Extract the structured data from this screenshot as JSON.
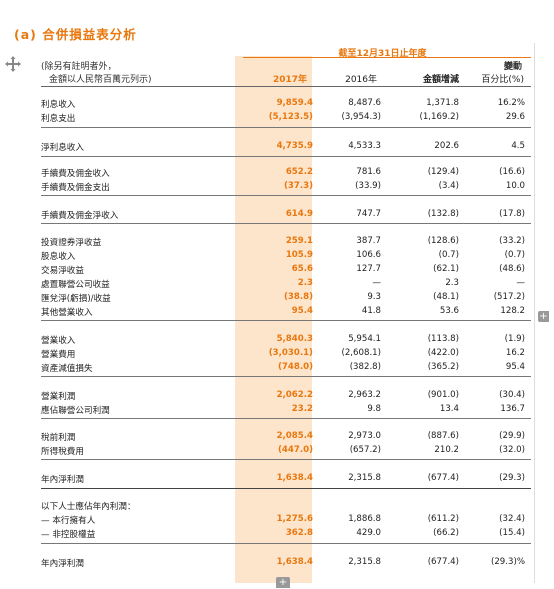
{
  "title": "(a) 合併損益表分析",
  "header": {
    "period_label": "截至12月31日止年度",
    "note_line1": "(除另有註明者外，",
    "note_line2": "金額以人民幣百萬元列示)",
    "col_2017": "2017年",
    "col_2016": "2016年",
    "col_change_amount": "金額增減",
    "col_change_pct_line1": "變動",
    "col_change_pct_line2": "百分比(%)"
  },
  "rows": [
    {
      "label": "利息收入",
      "v2017": "9,859.4",
      "v2016": "8,487.6",
      "change": "1,371.8",
      "pct": "16.2%"
    },
    {
      "label": "利息支出",
      "v2017": "(5,123.5)",
      "v2016": "(3,954.3)",
      "change": "(1,169.2)",
      "pct": "29.6"
    },
    {
      "label": "淨利息收入",
      "v2017": "4,735.9",
      "v2016": "4,533.3",
      "change": "202.6",
      "pct": "4.5"
    },
    {
      "label": "手續費及佣金收入",
      "v2017": "652.2",
      "v2016": "781.6",
      "change": "(129.4)",
      "pct": "(16.6)"
    },
    {
      "label": "手續費及佣金支出",
      "v2017": "(37.3)",
      "v2016": "(33.9)",
      "change": "(3.4)",
      "pct": "10.0"
    },
    {
      "label": "手續費及佣金淨收入",
      "v2017": "614.9",
      "v2016": "747.7",
      "change": "(132.8)",
      "pct": "(17.8)"
    },
    {
      "label": "投資證券淨收益",
      "v2017": "259.1",
      "v2016": "387.7",
      "change": "(128.6)",
      "pct": "(33.2)"
    },
    {
      "label": "股息收入",
      "v2017": "105.9",
      "v2016": "106.6",
      "change": "(0.7)",
      "pct": "(0.7)"
    },
    {
      "label": "交易淨收益",
      "v2017": "65.6",
      "v2016": "127.7",
      "change": "(62.1)",
      "pct": "(48.6)"
    },
    {
      "label": "處置聯營公司收益",
      "v2017": "2.3",
      "v2016": "—",
      "change": "2.3",
      "pct": "—"
    },
    {
      "label": "匯兌淨(虧損)/收益",
      "v2017": "(38.8)",
      "v2016": "9.3",
      "change": "(48.1)",
      "pct": "(517.2)"
    },
    {
      "label": "其他營業收入",
      "v2017": "95.4",
      "v2016": "41.8",
      "change": "53.6",
      "pct": "128.2"
    },
    {
      "label": "營業收入",
      "v2017": "5,840.3",
      "v2016": "5,954.1",
      "change": "(113.8)",
      "pct": "(1.9)"
    },
    {
      "label": "營業費用",
      "v2017": "(3,030.1)",
      "v2016": "(2,608.1)",
      "change": "(422.0)",
      "pct": "16.2"
    },
    {
      "label": "資產減值損失",
      "v2017": "(748.0)",
      "v2016": "(382.8)",
      "change": "(365.2)",
      "pct": "95.4"
    },
    {
      "label": "營業利潤",
      "v2017": "2,062.2",
      "v2016": "2,963.2",
      "change": "(901.0)",
      "pct": "(30.4)"
    },
    {
      "label": "應佔聯營公司利潤",
      "v2017": "23.2",
      "v2016": "9.8",
      "change": "13.4",
      "pct": "136.7"
    },
    {
      "label": "稅前利潤",
      "v2017": "2,085.4",
      "v2016": "2,973.0",
      "change": "(887.6)",
      "pct": "(29.9)"
    },
    {
      "label": "所得稅費用",
      "v2017": "(447.0)",
      "v2016": "(657.2)",
      "change": "210.2",
      "pct": "(32.0)"
    },
    {
      "label": "年內淨利潤",
      "v2017": "1,638.4",
      "v2016": "2,315.8",
      "change": "(677.4)",
      "pct": "(29.3)"
    },
    {
      "label": "以下人士應佔年內利潤：",
      "v2017": "",
      "v2016": "",
      "change": "",
      "pct": ""
    },
    {
      "label": "— 本行擁有人",
      "v2017": "1,275.6",
      "v2016": "1,886.8",
      "change": "(611.2)",
      "pct": "(32.4)"
    },
    {
      "label": "— 非控股權益",
      "v2017": "362.8",
      "v2016": "429.0",
      "change": "(66.2)",
      "pct": "(15.4)"
    },
    {
      "label": "年內淨利潤",
      "v2017": "1,638.4",
      "v2016": "2,315.8",
      "change": "(677.4)",
      "pct": "(29.3)%"
    }
  ],
  "controls": {
    "expand_right": "+",
    "expand_bottom": "+"
  }
}
